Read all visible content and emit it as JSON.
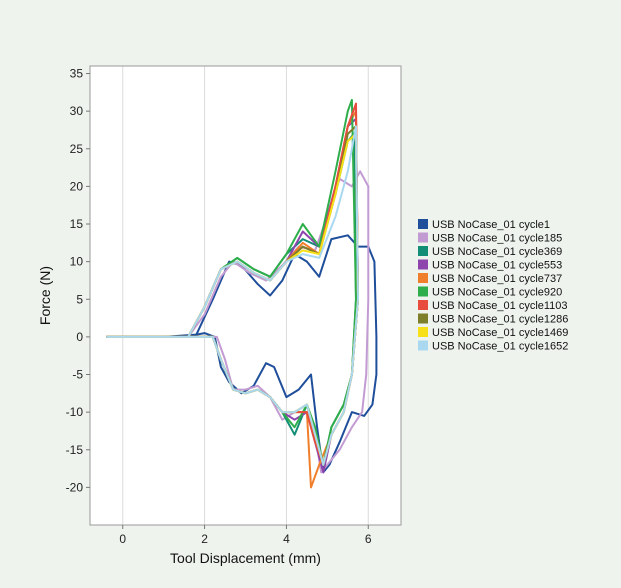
{
  "chart_data": {
    "type": "line",
    "title": "",
    "xlabel": "Tool Displacement (mm)",
    "ylabel": "Force (N)",
    "xlim": [
      -0.8,
      6.8
    ],
    "ylim": [
      -25,
      36
    ],
    "xticks": [
      "0",
      "2",
      "4",
      "6"
    ],
    "xtick_values": [
      0,
      2,
      4,
      6
    ],
    "yticks": [
      "35",
      "30",
      "25",
      "20",
      "15",
      "10",
      "5",
      "0",
      "-5",
      "-10",
      "-15",
      "-20"
    ],
    "ytick_values": [
      35,
      30,
      25,
      20,
      15,
      10,
      5,
      0,
      -5,
      -10,
      -15,
      -20
    ],
    "grid": "vertical",
    "legend_position": "right",
    "series": [
      {
        "name": "USB NoCase_01 cycle1",
        "color": "#1f4e9b",
        "x": [
          -0.4,
          0.2,
          1.0,
          1.8,
          2.2,
          2.6,
          2.9,
          3.3,
          3.6,
          3.9,
          4.2,
          4.5,
          4.8,
          5.1,
          5.5,
          5.75,
          6.0,
          6.15,
          6.2,
          6.2,
          6.1,
          5.9,
          5.6,
          5.3,
          5.05,
          4.9,
          4.75,
          4.6,
          4.3,
          4.0,
          3.7,
          3.5,
          3.2,
          2.9,
          2.6,
          2.4,
          2.25,
          2.0,
          1.5,
          0.5,
          -0.4
        ],
        "y": [
          0,
          0,
          0,
          0.3,
          5,
          10,
          9.5,
          7,
          5.5,
          7.5,
          11,
          10,
          8,
          13,
          13.5,
          12,
          12,
          10,
          0,
          -5,
          -9,
          -10.5,
          -10,
          -14,
          -17,
          -18,
          -12,
          -5,
          -7,
          -8,
          -4,
          -3.5,
          -6.5,
          -7.5,
          -6,
          -4,
          0,
          0.5,
          0,
          0,
          0
        ]
      },
      {
        "name": "USB NoCase_01 cycle185",
        "color": "#c39bd3",
        "x": [
          -0.4,
          0.5,
          1.6,
          2.0,
          2.4,
          2.7,
          3.1,
          3.5,
          3.9,
          4.3,
          4.7,
          5.0,
          5.3,
          5.6,
          5.8,
          6.0,
          6.0,
          5.95,
          5.85,
          5.6,
          5.3,
          5.0,
          4.85,
          4.7,
          4.5,
          4.2,
          3.9,
          3.6,
          3.3,
          3.0,
          2.7,
          2.5,
          2.3,
          2.1,
          1.5,
          0.5,
          -0.4
        ],
        "y": [
          0,
          0,
          0,
          3,
          8,
          10,
          8.5,
          7.5,
          9.5,
          12,
          11.5,
          16,
          21,
          20,
          22,
          20,
          5,
          -5,
          -10,
          -12,
          -15,
          -17,
          -18,
          -13,
          -9,
          -10,
          -11,
          -8,
          -6.5,
          -7,
          -7,
          -3,
          0,
          0,
          0,
          0,
          0
        ]
      },
      {
        "name": "USB NoCase_01 cycle369",
        "color": "#138d75",
        "x": [
          -0.4,
          0.5,
          1.6,
          2.0,
          2.4,
          2.8,
          3.2,
          3.6,
          4.0,
          4.4,
          4.8,
          5.2,
          5.5,
          5.65,
          5.7,
          5.6,
          5.4,
          5.1,
          4.9,
          4.7,
          4.5,
          4.2,
          3.9,
          3.6,
          3.3,
          3.0,
          2.7,
          2.4,
          2.2,
          1.5,
          0.5,
          -0.4
        ],
        "y": [
          0,
          0,
          0,
          4,
          9,
          10.5,
          9,
          8,
          11,
          13,
          12,
          19,
          26,
          27,
          5,
          -5,
          -9,
          -12,
          -17,
          -13,
          -9,
          -13,
          -10,
          -8,
          -7,
          -7.5,
          -7,
          -3,
          0,
          0,
          0,
          0
        ]
      },
      {
        "name": "USB NoCase_01 cycle553",
        "color": "#8e44ad",
        "x": [
          -0.4,
          0.5,
          1.6,
          2.0,
          2.4,
          2.8,
          3.2,
          3.6,
          4.0,
          4.4,
          4.8,
          5.2,
          5.5,
          5.7,
          5.75,
          5.6,
          5.4,
          5.1,
          4.9,
          4.7,
          4.5,
          4.2,
          3.9,
          3.6,
          3.3,
          3.0,
          2.7,
          2.4,
          2.2,
          1.5,
          0.5,
          -0.4
        ],
        "y": [
          0,
          0,
          0,
          4,
          9,
          10,
          8.5,
          7.5,
          10,
          14,
          12,
          20,
          28,
          29,
          5,
          -5,
          -10,
          -13,
          -18,
          -14,
          -10,
          -11,
          -10,
          -8,
          -7,
          -7.5,
          -7,
          -3,
          0,
          0,
          0,
          0
        ]
      },
      {
        "name": "USB NoCase_01 cycle737",
        "color": "#f07f2c",
        "x": [
          -0.4,
          0.5,
          1.6,
          2.0,
          2.4,
          2.8,
          3.2,
          3.6,
          4.0,
          4.4,
          4.8,
          5.2,
          5.5,
          5.7,
          5.75,
          5.6,
          5.4,
          5.1,
          4.8,
          4.6,
          4.5,
          4.2,
          3.9,
          3.6,
          3.3,
          3.0,
          2.7,
          2.4,
          2.2,
          1.5,
          0.5,
          -0.4
        ],
        "y": [
          0,
          0,
          0,
          4,
          9,
          10,
          8.5,
          7.5,
          10,
          12.5,
          11,
          20,
          28,
          30,
          5,
          -5,
          -10,
          -13,
          -17,
          -20,
          -10,
          -10,
          -10,
          -8,
          -7,
          -7.5,
          -7,
          -3,
          0,
          0,
          0,
          0
        ]
      },
      {
        "name": "USB NoCase_01 cycle920",
        "color": "#2eae4a",
        "x": [
          -0.4,
          0.5,
          1.6,
          2.0,
          2.4,
          2.8,
          3.2,
          3.6,
          4.0,
          4.4,
          4.8,
          5.2,
          5.5,
          5.6,
          5.7,
          5.6,
          5.4,
          5.1,
          4.9,
          4.7,
          4.5,
          4.2,
          3.9,
          3.6,
          3.3,
          3.0,
          2.7,
          2.4,
          2.2,
          1.5,
          0.5,
          -0.4
        ],
        "y": [
          0,
          0,
          0,
          4,
          9,
          10.5,
          9,
          8,
          11,
          15,
          12,
          22,
          30,
          31.5,
          5,
          -5,
          -9,
          -12,
          -17,
          -12,
          -9,
          -12,
          -10,
          -8,
          -7,
          -7.5,
          -7,
          -3,
          0,
          0,
          0,
          0
        ]
      },
      {
        "name": "USB NoCase_01 cycle1103",
        "color": "#e74c3c",
        "x": [
          -0.4,
          0.5,
          1.6,
          2.0,
          2.4,
          2.8,
          3.2,
          3.6,
          4.0,
          4.4,
          4.8,
          5.2,
          5.5,
          5.7,
          5.75,
          5.6,
          5.4,
          5.1,
          4.9,
          4.7,
          4.5,
          4.2,
          3.9,
          3.6,
          3.3,
          3.0,
          2.7,
          2.4,
          2.2,
          1.5,
          0.5,
          -0.4
        ],
        "y": [
          0,
          0,
          0,
          4,
          9,
          10,
          8.5,
          7.5,
          10,
          12,
          11,
          20,
          28,
          31,
          5,
          -5,
          -10,
          -13,
          -17,
          -14,
          -10,
          -10,
          -10,
          -8,
          -7,
          -7.5,
          -7,
          -3,
          0,
          0,
          0,
          0
        ]
      },
      {
        "name": "USB NoCase_01 cycle1286",
        "color": "#7d7f2a",
        "x": [
          -0.4,
          0.5,
          1.6,
          2.0,
          2.4,
          2.8,
          3.2,
          3.6,
          4.0,
          4.4,
          4.8,
          5.2,
          5.5,
          5.7,
          5.75,
          5.6,
          5.4,
          5.1,
          4.9,
          4.7,
          4.5,
          4.2,
          3.9,
          3.6,
          3.3,
          3.0,
          2.7,
          2.4,
          2.2,
          1.5,
          0.5,
          -0.4
        ],
        "y": [
          0,
          0,
          0,
          4,
          9,
          10,
          8.5,
          7.5,
          10,
          12,
          11,
          19,
          27,
          28,
          5,
          -5,
          -10,
          -13,
          -17,
          -13,
          -9,
          -10,
          -10,
          -8,
          -7,
          -7.5,
          -7,
          -3,
          0,
          0,
          0,
          0
        ]
      },
      {
        "name": "USB NoCase_01 cycle1469",
        "color": "#f7e017",
        "x": [
          -0.4,
          0.5,
          1.6,
          2.0,
          2.4,
          2.8,
          3.2,
          3.6,
          4.0,
          4.4,
          4.8,
          5.2,
          5.5,
          5.7,
          5.75,
          5.6,
          5.4,
          5.1,
          4.9,
          4.7,
          4.5,
          4.2,
          3.9,
          3.6,
          3.3,
          3.0,
          2.7,
          2.4,
          2.2,
          1.5,
          0.5,
          -0.4
        ],
        "y": [
          0,
          0,
          0,
          4,
          9,
          10,
          8.5,
          7.5,
          10,
          11.5,
          11,
          19,
          26,
          27,
          5,
          -5,
          -10,
          -13,
          -17,
          -13,
          -9,
          -10,
          -10,
          -8,
          -7,
          -7.5,
          -7,
          -3,
          0,
          0,
          0,
          0
        ]
      },
      {
        "name": "USB NoCase_01 cycle1652",
        "color": "#a9d8f0",
        "x": [
          -0.4,
          0.5,
          1.6,
          2.0,
          2.4,
          2.8,
          3.2,
          3.6,
          4.0,
          4.4,
          4.8,
          5.2,
          5.5,
          5.7,
          5.75,
          5.6,
          5.4,
          5.1,
          4.9,
          4.7,
          4.5,
          4.2,
          3.9,
          3.6,
          3.3,
          3.0,
          2.7,
          2.4,
          2.2,
          1.5,
          0.5,
          -0.4
        ],
        "y": [
          0,
          0,
          0,
          4,
          9,
          10,
          8.5,
          7.5,
          10,
          11,
          10.5,
          16,
          22,
          28,
          5,
          -5,
          -10,
          -13,
          -17,
          -13,
          -9,
          -10,
          -10,
          -8,
          -7,
          -7.5,
          -7,
          -3,
          0,
          0,
          0,
          0
        ]
      }
    ]
  }
}
